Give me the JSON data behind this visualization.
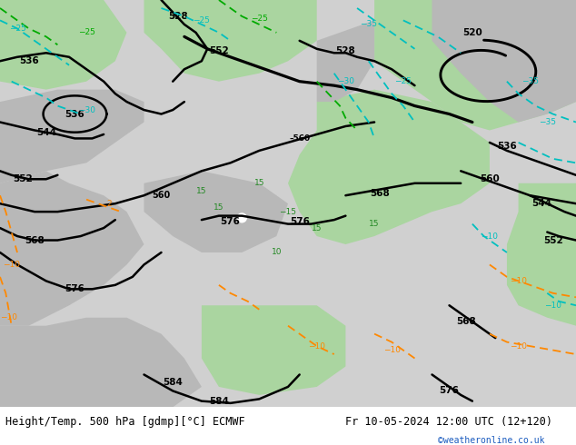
{
  "title_left": "Height/Temp. 500 hPa [gdmp][°C] ECMWF",
  "title_right": "Fr 10-05-2024 12:00 UTC (12+120)",
  "credit": "©weatheronline.co.uk",
  "fig_width": 6.34,
  "fig_height": 4.9,
  "dpi": 100,
  "green_color": "#aad5a0",
  "gray_color": "#b8b8b8",
  "light_gray": "#d0d0d0",
  "cyan_color": "#00bfbf",
  "green_dash_color": "#00aa00",
  "orange_color": "#ff8800",
  "black_color": "#000000",
  "white_color": "#ffffff",
  "label_fontsize": 7.5,
  "title_fontsize": 8.5,
  "credit_color": "#1a5bbf",
  "contour_lw": 1.8,
  "dash_lw": 1.3
}
